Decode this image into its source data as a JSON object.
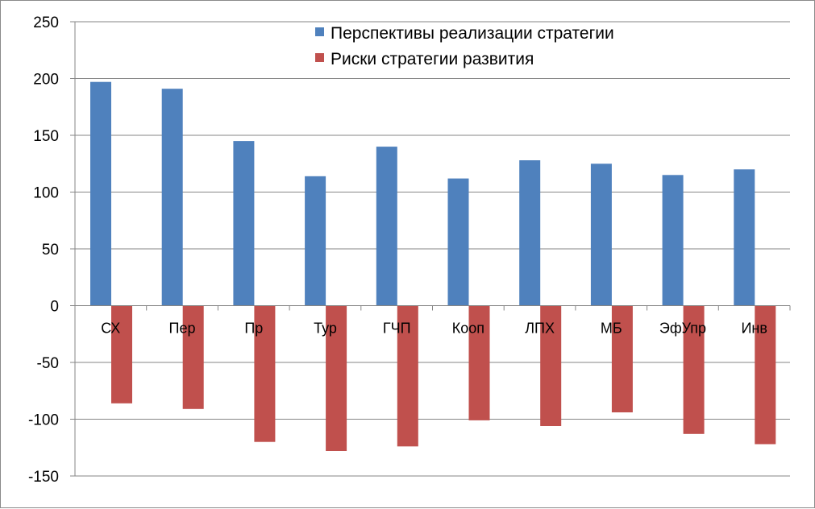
{
  "chart_data": {
    "type": "bar",
    "title": "",
    "xlabel": "",
    "ylabel": "",
    "categories": [
      "СХ",
      "Пер",
      "Пр",
      "Тур",
      "ГЧП",
      "Кооп",
      "ЛПХ",
      "МБ",
      "ЭфУпр",
      "Инв"
    ],
    "series": [
      {
        "name": "Перспективы реализации стратегии",
        "color": "#4F81BD",
        "values": [
          197,
          191,
          145,
          114,
          140,
          112,
          128,
          125,
          115,
          120
        ]
      },
      {
        "name": "Риски стратегии развития",
        "color": "#C0504D",
        "values": [
          -86,
          -91,
          -120,
          -128,
          -124,
          -101,
          -106,
          -94,
          -113,
          -122
        ]
      }
    ],
    "ylim": [
      -150,
      250
    ],
    "yticks": [
      250,
      200,
      150,
      100,
      50,
      0,
      -50,
      -100,
      -150
    ],
    "grid": true,
    "legend_position": "top-right"
  }
}
